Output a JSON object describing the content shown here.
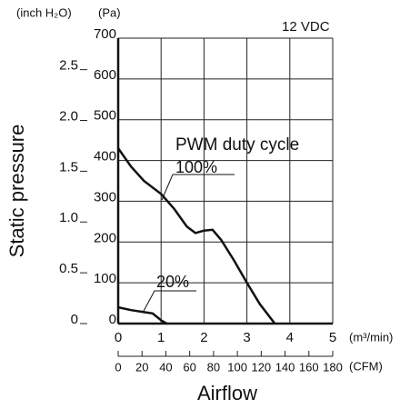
{
  "chart_data": {
    "type": "line",
    "note": "12 VDC",
    "legend_title": "PWM duty cycle",
    "xlabel": "Airflow",
    "ylabel": "Static pressure",
    "x_unit": "(m³/min)",
    "x2_unit": "(CFM)",
    "y_unit": "(Pa)",
    "y2_unit": "(inch H₂O)",
    "xlim": [
      0,
      5
    ],
    "xticks": [
      0,
      1,
      2,
      3,
      4,
      5
    ],
    "x2lim": [
      0,
      180
    ],
    "x2ticks": [
      0,
      20,
      40,
      60,
      80,
      100,
      120,
      140,
      160,
      180
    ],
    "ylim": [
      0,
      700
    ],
    "yticks": [
      0,
      100,
      200,
      300,
      400,
      500,
      600,
      700
    ],
    "y2lim": [
      0,
      2.81
    ],
    "y2ticks": [
      0,
      0.5,
      {
        "value": 1.0,
        "label": "1.0"
      },
      1.5,
      {
        "value": 2.0,
        "label": "2.0"
      },
      2.5
    ],
    "grid": true,
    "series": [
      {
        "name": "100%",
        "color": "#111111",
        "x": [
          0,
          0.3,
          0.6,
          1.0,
          1.3,
          1.6,
          1.8,
          2.0,
          2.2,
          2.4,
          2.7,
          3.0,
          3.3,
          3.65
        ],
        "values": [
          430,
          385,
          350,
          318,
          282,
          238,
          222,
          228,
          230,
          205,
          155,
          100,
          48,
          0
        ]
      },
      {
        "name": "20%",
        "color": "#111111",
        "x": [
          0,
          0.3,
          0.6,
          0.8,
          1.0,
          1.13
        ],
        "values": [
          40,
          33,
          28,
          25,
          8,
          0
        ]
      }
    ]
  }
}
